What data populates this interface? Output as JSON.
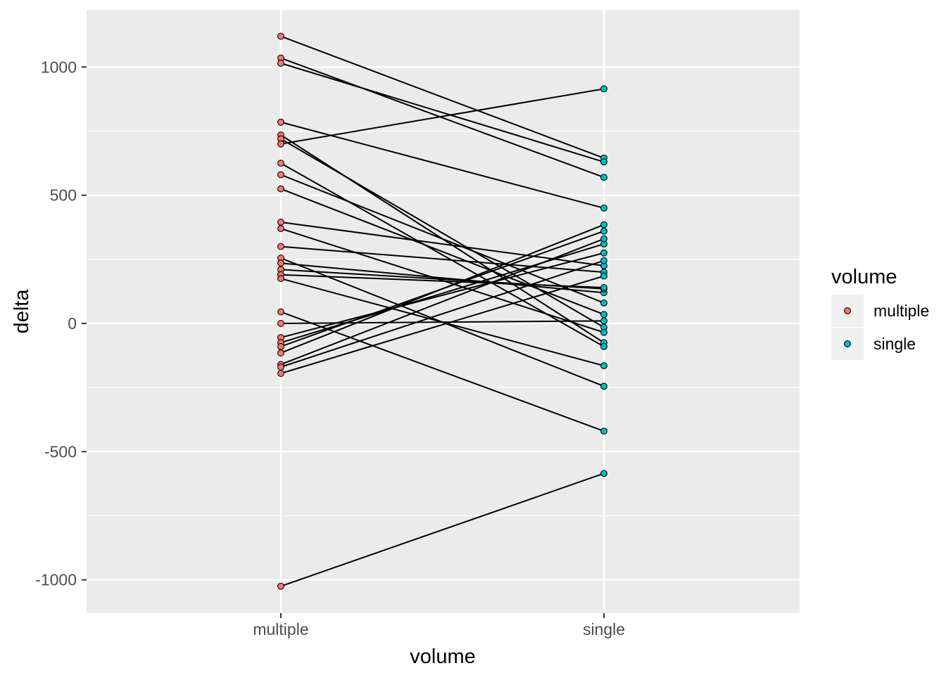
{
  "figure": {
    "background": "#FFFFFF",
    "panel_background": "#EBEBEB",
    "gridline_color": "#FFFFFF",
    "tick_mark_color": "#333333",
    "tick_label_color": "#4D4D4D",
    "connector_color": "#000000",
    "legend_key_background": "#F0F0F0"
  },
  "chart_data": {
    "type": "line",
    "subtype": "paired-slope-chart",
    "title": "",
    "xlabel": "volume",
    "ylabel": "delta",
    "x_categories": [
      "multiple",
      "single"
    ],
    "y_major_ticks": [
      1000,
      500,
      0,
      -500,
      -1000
    ],
    "y_minor_ticks": [
      750,
      250,
      -250,
      -750
    ],
    "ylim": [
      -1130,
      1225
    ],
    "grid": true,
    "legend": {
      "title": "volume",
      "position": "right",
      "entries": [
        {
          "label": "multiple",
          "color": "#F8766D"
        },
        {
          "label": "single",
          "color": "#00BFC4"
        }
      ]
    },
    "pair_format": [
      "multiple",
      "single"
    ],
    "pairs": [
      [
        1120,
        645
      ],
      [
        1035,
        570
      ],
      [
        1015,
        630
      ],
      [
        785,
        450
      ],
      [
        735,
        -75
      ],
      [
        720,
        -15
      ],
      [
        700,
        915
      ],
      [
        625,
        -90
      ],
      [
        580,
        80
      ],
      [
        525,
        35
      ],
      [
        395,
        225
      ],
      [
        370,
        -35
      ],
      [
        300,
        200
      ],
      [
        255,
        -245
      ],
      [
        235,
        120
      ],
      [
        210,
        135
      ],
      [
        190,
        140
      ],
      [
        175,
        -165
      ],
      [
        45,
        -420
      ],
      [
        0,
        10
      ],
      [
        -55,
        275
      ],
      [
        -75,
        310
      ],
      [
        -90,
        360
      ],
      [
        -115,
        385
      ],
      [
        -160,
        330
      ],
      [
        -170,
        245
      ],
      [
        -195,
        185
      ],
      [
        -1025,
        -585
      ]
    ]
  }
}
